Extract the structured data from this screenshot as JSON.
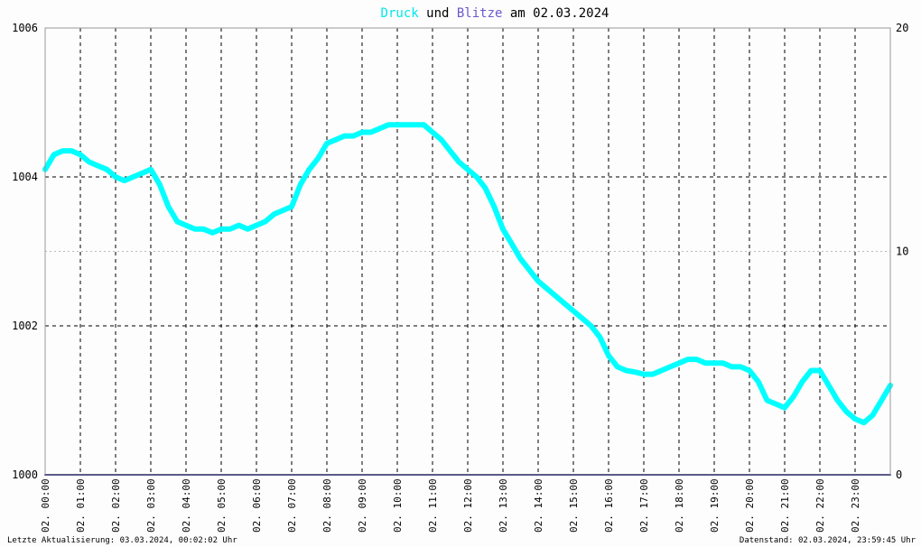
{
  "title": {
    "word1": "Druck",
    "word2": "und",
    "word3": "Blitze",
    "word4": "am 02.03.2024",
    "word1_color": "#00e8e8",
    "word3_color": "#6a5acd"
  },
  "footer": {
    "left": "Letzte Aktualisierung: 03.03.2024, 00:02:02 Uhr",
    "right": "Datenstand: 02.03.2024, 23:59:45 Uhr"
  },
  "chart_data": {
    "type": "line",
    "title": "Druck und Blitze am 02.03.2024",
    "grid": true,
    "y_left": {
      "ticks": [
        "1000",
        "1002",
        "1004",
        "1006"
      ],
      "range": [
        1000,
        1006
      ]
    },
    "y_right": {
      "ticks": [
        "0",
        "10",
        "20"
      ],
      "range": [
        0,
        20
      ]
    },
    "x_range_hours": [
      0,
      24
    ],
    "x_tick_labels": [
      "02. 00:00",
      "02. 01:00",
      "02. 02:00",
      "02. 03:00",
      "02. 04:00",
      "02. 05:00",
      "02. 06:00",
      "02. 07:00",
      "02. 08:00",
      "02. 09:00",
      "02. 10:00",
      "02. 11:00",
      "02. 12:00",
      "02. 13:00",
      "02. 14:00",
      "02. 15:00",
      "02. 16:00",
      "02. 17:00",
      "02. 18:00",
      "02. 19:00",
      "02. 20:00",
      "02. 21:00",
      "02. 22:00",
      "02. 23:00"
    ],
    "series": [
      {
        "name": "Druck",
        "axis": "left",
        "color": "#00ffff",
        "x": [
          0,
          0.25,
          0.5,
          0.75,
          1,
          1.25,
          1.5,
          1.75,
          2,
          2.25,
          2.5,
          2.75,
          3,
          3.25,
          3.5,
          3.75,
          4,
          4.25,
          4.5,
          4.75,
          5,
          5.25,
          5.5,
          5.75,
          6,
          6.25,
          6.5,
          6.75,
          7,
          7.25,
          7.5,
          7.75,
          8,
          8.25,
          8.5,
          8.75,
          9,
          9.25,
          9.5,
          9.75,
          10,
          10.25,
          10.5,
          10.75,
          11,
          11.25,
          11.5,
          11.75,
          12,
          12.25,
          12.5,
          12.75,
          13,
          13.25,
          13.5,
          13.75,
          14,
          14.25,
          14.5,
          14.75,
          15,
          15.25,
          15.5,
          15.75,
          16,
          16.25,
          16.5,
          16.75,
          17,
          17.25,
          17.5,
          17.75,
          18,
          18.25,
          18.5,
          18.75,
          19,
          19.25,
          19.5,
          19.75,
          20,
          20.25,
          20.5,
          20.75,
          21,
          21.25,
          21.5,
          21.75,
          22,
          22.25,
          22.5,
          22.75,
          23,
          23.25,
          23.5,
          23.75,
          24
        ],
        "values": [
          1004.1,
          1004.3,
          1004.35,
          1004.35,
          1004.3,
          1004.2,
          1004.15,
          1004.1,
          1004.0,
          1003.95,
          1004.0,
          1004.05,
          1004.1,
          1003.9,
          1003.6,
          1003.4,
          1003.35,
          1003.3,
          1003.3,
          1003.25,
          1003.3,
          1003.3,
          1003.35,
          1003.3,
          1003.35,
          1003.4,
          1003.5,
          1003.55,
          1003.6,
          1003.9,
          1004.1,
          1004.25,
          1004.45,
          1004.5,
          1004.55,
          1004.55,
          1004.6,
          1004.6,
          1004.65,
          1004.7,
          1004.7,
          1004.7,
          1004.7,
          1004.7,
          1004.6,
          1004.5,
          1004.35,
          1004.2,
          1004.1,
          1004.0,
          1003.85,
          1003.6,
          1003.3,
          1003.1,
          1002.9,
          1002.75,
          1002.6,
          1002.5,
          1002.4,
          1002.3,
          1002.2,
          1002.1,
          1002.0,
          1001.85,
          1001.6,
          1001.45,
          1001.4,
          1001.38,
          1001.35,
          1001.35,
          1001.4,
          1001.45,
          1001.5,
          1001.55,
          1001.55,
          1001.5,
          1001.5,
          1001.5,
          1001.45,
          1001.45,
          1001.4,
          1001.25,
          1001.0,
          1000.95,
          1000.9,
          1001.05,
          1001.25,
          1001.4,
          1001.4,
          1001.2,
          1001.0,
          1000.85,
          1000.75,
          1000.7,
          1000.8,
          1001.0,
          1001.2
        ]
      },
      {
        "name": "Blitze",
        "axis": "right",
        "color": "#1a1a7a",
        "x": [
          0,
          24
        ],
        "values": [
          0,
          0
        ]
      }
    ]
  }
}
